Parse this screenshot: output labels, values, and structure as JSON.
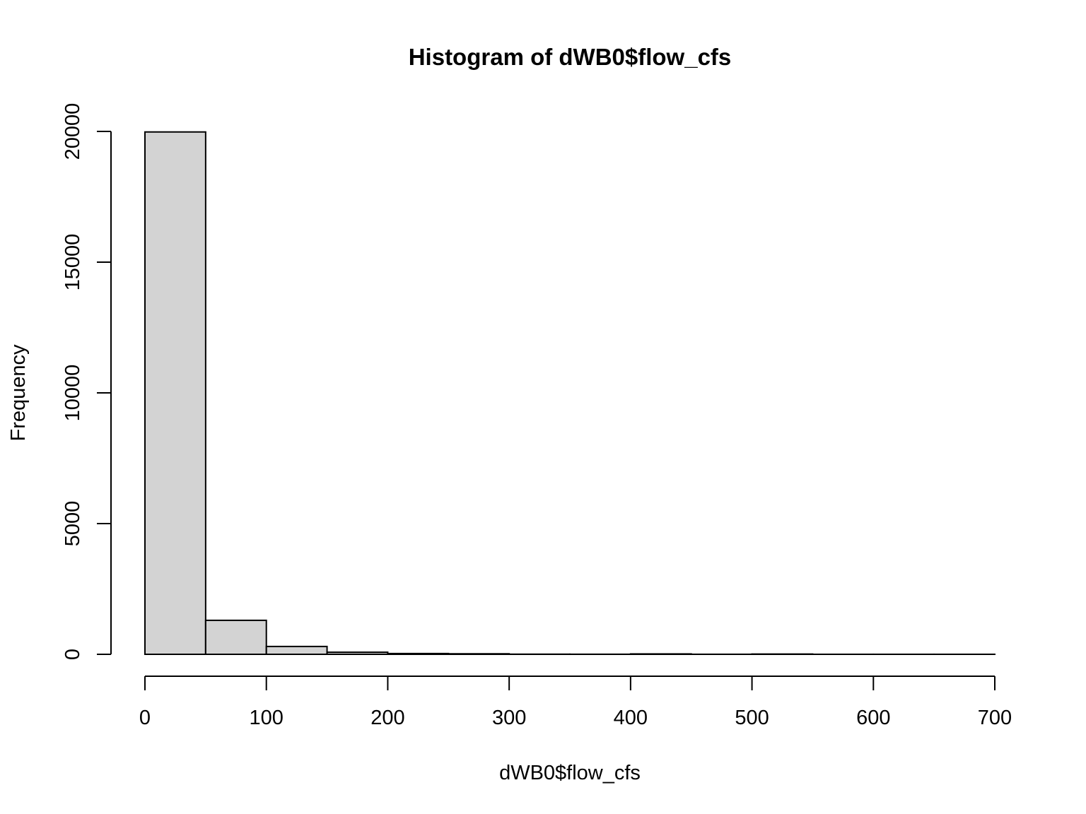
{
  "chart_data": {
    "type": "bar",
    "subtype": "histogram",
    "title": "Histogram of dWB0$flow_cfs",
    "xlabel": "dWB0$flow_cfs",
    "ylabel": "Frequency",
    "bin_width": 50,
    "bins": [
      {
        "x0": 0,
        "x1": 50,
        "count": 19980
      },
      {
        "x0": 50,
        "x1": 100,
        "count": 1300
      },
      {
        "x0": 100,
        "x1": 150,
        "count": 300
      },
      {
        "x0": 150,
        "x1": 200,
        "count": 80
      },
      {
        "x0": 200,
        "x1": 250,
        "count": 30
      },
      {
        "x0": 250,
        "x1": 300,
        "count": 20
      },
      {
        "x0": 300,
        "x1": 350,
        "count": 5
      },
      {
        "x0": 350,
        "x1": 400,
        "count": 3
      },
      {
        "x0": 400,
        "x1": 450,
        "count": 15
      },
      {
        "x0": 450,
        "x1": 500,
        "count": 2
      },
      {
        "x0": 500,
        "x1": 550,
        "count": 10
      },
      {
        "x0": 550,
        "x1": 600,
        "count": 1
      },
      {
        "x0": 600,
        "x1": 650,
        "count": 1
      },
      {
        "x0": 650,
        "x1": 700,
        "count": 1
      }
    ],
    "xlim": [
      0,
      700
    ],
    "ylim": [
      0,
      20000
    ],
    "x_ticks": [
      0,
      100,
      200,
      300,
      400,
      500,
      600,
      700
    ],
    "y_ticks": [
      0,
      5000,
      10000,
      15000,
      20000
    ],
    "grid": false,
    "legend": "none",
    "bar_fill": "#d3d3d3",
    "bar_stroke": "#000000"
  }
}
